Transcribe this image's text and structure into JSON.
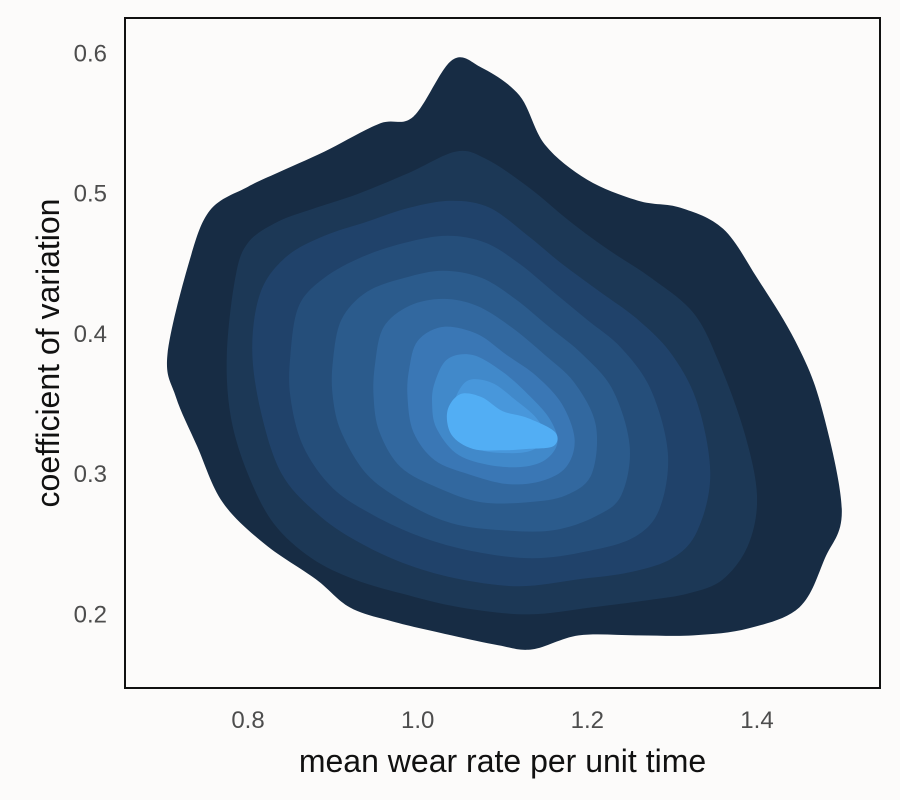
{
  "chart_data": {
    "type": "filled-density-contour",
    "title": "",
    "xlabel": "mean wear rate per unit time",
    "ylabel": "coefficient of variation",
    "xlim": [
      0.655,
      1.545
    ],
    "ylim": [
      0.1475,
      0.6253
    ],
    "x_ticks": [
      0.8,
      1.0,
      1.2,
      1.4
    ],
    "x_tick_labels": [
      "0.8",
      "1.0",
      "1.2",
      "1.4"
    ],
    "y_ticks": [
      0.2,
      0.3,
      0.4,
      0.5,
      0.6
    ],
    "y_tick_labels": [
      "0.2",
      "0.3",
      "0.4",
      "0.5",
      "0.6"
    ],
    "grid": false,
    "legend": "none",
    "density_peak": {
      "x": 1.12,
      "y": 0.325
    },
    "contour_levels": [
      {
        "level": 1,
        "color": "#172c44",
        "outline": [
          [
            0.705,
            0.385
          ],
          [
            0.73,
            0.45
          ],
          [
            0.755,
            0.488
          ],
          [
            0.8,
            0.505
          ],
          [
            0.835,
            0.515
          ],
          [
            0.89,
            0.53
          ],
          [
            0.955,
            0.55
          ],
          [
            0.995,
            0.555
          ],
          [
            1.04,
            0.595
          ],
          [
            1.075,
            0.59
          ],
          [
            1.12,
            0.57
          ],
          [
            1.15,
            0.535
          ],
          [
            1.2,
            0.51
          ],
          [
            1.26,
            0.495
          ],
          [
            1.31,
            0.49
          ],
          [
            1.36,
            0.475
          ],
          [
            1.4,
            0.44
          ],
          [
            1.445,
            0.395
          ],
          [
            1.475,
            0.35
          ],
          [
            1.5,
            0.275
          ],
          [
            1.48,
            0.24
          ],
          [
            1.45,
            0.205
          ],
          [
            1.39,
            0.19
          ],
          [
            1.325,
            0.185
          ],
          [
            1.26,
            0.185
          ],
          [
            1.19,
            0.185
          ],
          [
            1.135,
            0.175
          ],
          [
            1.095,
            0.178
          ],
          [
            1.04,
            0.185
          ],
          [
            0.97,
            0.195
          ],
          [
            0.92,
            0.205
          ],
          [
            0.88,
            0.225
          ],
          [
            0.82,
            0.25
          ],
          [
            0.77,
            0.28
          ],
          [
            0.74,
            0.32
          ],
          [
            0.715,
            0.355
          ]
        ]
      },
      {
        "level": 2,
        "color": "#1c3856",
        "outline": [
          [
            0.775,
            0.385
          ],
          [
            0.785,
            0.44
          ],
          [
            0.8,
            0.465
          ],
          [
            0.835,
            0.48
          ],
          [
            0.88,
            0.49
          ],
          [
            0.93,
            0.5
          ],
          [
            0.99,
            0.515
          ],
          [
            1.045,
            0.53
          ],
          [
            1.08,
            0.525
          ],
          [
            1.13,
            0.505
          ],
          [
            1.18,
            0.48
          ],
          [
            1.225,
            0.46
          ],
          [
            1.275,
            0.44
          ],
          [
            1.325,
            0.415
          ],
          [
            1.355,
            0.38
          ],
          [
            1.385,
            0.33
          ],
          [
            1.4,
            0.285
          ],
          [
            1.39,
            0.25
          ],
          [
            1.36,
            0.225
          ],
          [
            1.32,
            0.215
          ],
          [
            1.27,
            0.21
          ],
          [
            1.205,
            0.205
          ],
          [
            1.13,
            0.2
          ],
          [
            1.05,
            0.205
          ],
          [
            0.98,
            0.215
          ],
          [
            0.925,
            0.225
          ],
          [
            0.875,
            0.24
          ],
          [
            0.83,
            0.265
          ],
          [
            0.8,
            0.3
          ],
          [
            0.78,
            0.34
          ]
        ]
      },
      {
        "level": 3,
        "color": "#20426a",
        "outline": [
          [
            0.805,
            0.39
          ],
          [
            0.815,
            0.43
          ],
          [
            0.845,
            0.455
          ],
          [
            0.89,
            0.47
          ],
          [
            0.94,
            0.48
          ],
          [
            0.99,
            0.49
          ],
          [
            1.04,
            0.495
          ],
          [
            1.085,
            0.49
          ],
          [
            1.13,
            0.47
          ],
          [
            1.17,
            0.45
          ],
          [
            1.215,
            0.43
          ],
          [
            1.26,
            0.41
          ],
          [
            1.3,
            0.385
          ],
          [
            1.33,
            0.35
          ],
          [
            1.345,
            0.3
          ],
          [
            1.33,
            0.26
          ],
          [
            1.3,
            0.24
          ],
          [
            1.25,
            0.23
          ],
          [
            1.19,
            0.225
          ],
          [
            1.12,
            0.22
          ],
          [
            1.05,
            0.225
          ],
          [
            0.99,
            0.235
          ],
          [
            0.935,
            0.25
          ],
          [
            0.885,
            0.27
          ],
          [
            0.84,
            0.3
          ],
          [
            0.815,
            0.345
          ]
        ]
      },
      {
        "level": 4,
        "color": "#254e7a",
        "outline": [
          [
            0.85,
            0.385
          ],
          [
            0.86,
            0.42
          ],
          [
            0.89,
            0.44
          ],
          [
            0.935,
            0.455
          ],
          [
            0.985,
            0.465
          ],
          [
            1.035,
            0.47
          ],
          [
            1.08,
            0.465
          ],
          [
            1.12,
            0.45
          ],
          [
            1.16,
            0.43
          ],
          [
            1.2,
            0.41
          ],
          [
            1.24,
            0.39
          ],
          [
            1.275,
            0.36
          ],
          [
            1.295,
            0.315
          ],
          [
            1.285,
            0.275
          ],
          [
            1.255,
            0.255
          ],
          [
            1.2,
            0.245
          ],
          [
            1.135,
            0.24
          ],
          [
            1.065,
            0.245
          ],
          [
            1.005,
            0.255
          ],
          [
            0.95,
            0.27
          ],
          [
            0.9,
            0.29
          ],
          [
            0.865,
            0.32
          ],
          [
            0.85,
            0.355
          ]
        ]
      },
      {
        "level": 5,
        "color": "#2b5b8c",
        "outline": [
          [
            0.9,
            0.38
          ],
          [
            0.91,
            0.41
          ],
          [
            0.94,
            0.43
          ],
          [
            0.985,
            0.44
          ],
          [
            1.03,
            0.445
          ],
          [
            1.075,
            0.44
          ],
          [
            1.115,
            0.425
          ],
          [
            1.155,
            0.405
          ],
          [
            1.195,
            0.385
          ],
          [
            1.23,
            0.36
          ],
          [
            1.25,
            0.32
          ],
          [
            1.24,
            0.285
          ],
          [
            1.21,
            0.27
          ],
          [
            1.16,
            0.26
          ],
          [
            1.1,
            0.26
          ],
          [
            1.04,
            0.265
          ],
          [
            0.985,
            0.28
          ],
          [
            0.94,
            0.3
          ],
          [
            0.91,
            0.33
          ],
          [
            0.9,
            0.355
          ]
        ]
      },
      {
        "level": 6,
        "color": "#32689f",
        "outline": [
          [
            0.95,
            0.38
          ],
          [
            0.96,
            0.405
          ],
          [
            0.99,
            0.42
          ],
          [
            1.03,
            0.425
          ],
          [
            1.07,
            0.42
          ],
          [
            1.11,
            0.405
          ],
          [
            1.15,
            0.385
          ],
          [
            1.185,
            0.365
          ],
          [
            1.21,
            0.335
          ],
          [
            1.205,
            0.3
          ],
          [
            1.175,
            0.285
          ],
          [
            1.13,
            0.28
          ],
          [
            1.075,
            0.28
          ],
          [
            1.025,
            0.29
          ],
          [
            0.98,
            0.305
          ],
          [
            0.955,
            0.33
          ],
          [
            0.948,
            0.355
          ]
        ]
      },
      {
        "level": 7,
        "color": "#3a77b5",
        "outline": [
          [
            0.99,
            0.375
          ],
          [
            1.0,
            0.395
          ],
          [
            1.03,
            0.405
          ],
          [
            1.07,
            0.4
          ],
          [
            1.105,
            0.385
          ],
          [
            1.14,
            0.37
          ],
          [
            1.17,
            0.35
          ],
          [
            1.185,
            0.325
          ],
          [
            1.175,
            0.305
          ],
          [
            1.145,
            0.295
          ],
          [
            1.105,
            0.293
          ],
          [
            1.06,
            0.3
          ],
          [
            1.02,
            0.31
          ],
          [
            0.995,
            0.33
          ],
          [
            0.988,
            0.355
          ]
        ]
      },
      {
        "level": 8,
        "color": "#4189ca",
        "outline": [
          [
            1.02,
            0.365
          ],
          [
            1.035,
            0.382
          ],
          [
            1.065,
            0.385
          ],
          [
            1.1,
            0.373
          ],
          [
            1.13,
            0.357
          ],
          [
            1.155,
            0.34
          ],
          [
            1.165,
            0.323
          ],
          [
            1.15,
            0.31
          ],
          [
            1.12,
            0.305
          ],
          [
            1.08,
            0.307
          ],
          [
            1.045,
            0.315
          ],
          [
            1.022,
            0.333
          ],
          [
            1.017,
            0.35
          ]
        ]
      },
      {
        "level": 9,
        "color": "#4897db",
        "outline": [
          [
            1.045,
            0.355
          ],
          [
            1.06,
            0.367
          ],
          [
            1.088,
            0.365
          ],
          [
            1.115,
            0.353
          ],
          [
            1.14,
            0.34
          ],
          [
            1.15,
            0.327
          ],
          [
            1.135,
            0.317
          ],
          [
            1.105,
            0.315
          ],
          [
            1.07,
            0.318
          ],
          [
            1.048,
            0.33
          ],
          [
            1.043,
            0.343
          ]
        ]
      },
      {
        "level": 10,
        "color": "#52aef4",
        "outline": [
          [
            1.035,
            0.345
          ],
          [
            1.05,
            0.357
          ],
          [
            1.075,
            0.355
          ],
          [
            1.1,
            0.345
          ],
          [
            1.13,
            0.34
          ],
          [
            1.162,
            0.33
          ],
          [
            1.16,
            0.32
          ],
          [
            1.13,
            0.318
          ],
          [
            1.1,
            0.317
          ],
          [
            1.065,
            0.318
          ],
          [
            1.04,
            0.328
          ]
        ]
      }
    ]
  }
}
